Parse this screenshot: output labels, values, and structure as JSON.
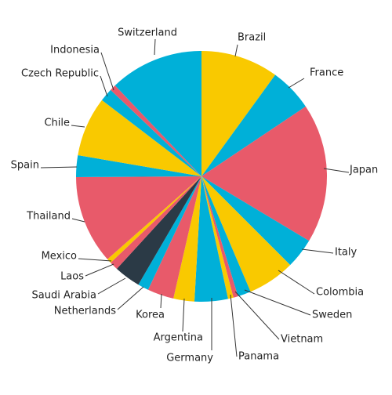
{
  "chart_data": {
    "type": "pie",
    "categories": [
      "Brazil",
      "France",
      "Japan",
      "Italy",
      "Colombia",
      "Sweden",
      "Vietnam",
      "Panama",
      "Germany",
      "Argentina",
      "Korea",
      "Netherlands",
      "Saudi Arabia",
      "Laos",
      "Mexico",
      "Thailand",
      "Spain",
      "Chile",
      "Czech Republic",
      "Indonesia",
      "Switzerland"
    ],
    "values": [
      10,
      5.6,
      18,
      3.9,
      6.1,
      1.7,
      0.6,
      0.7,
      4.3,
      2.7,
      3.4,
      1.4,
      3.4,
      1.1,
      0.6,
      11.4,
      2.8,
      7.7,
      1.7,
      0.8,
      12.1
    ],
    "colors": [
      "#f9c900",
      "#00b0d8",
      "#e85a6a",
      "#00b0d8",
      "#f9c900",
      "#00b0d8",
      "#e85a6a",
      "#f9c900",
      "#00b0d8",
      "#f9c900",
      "#e85a6a",
      "#00b0d8",
      "#2b3a46",
      "#e85a6a",
      "#f9c900",
      "#e85a6a",
      "#00b0d8",
      "#f9c900",
      "#00b0d8",
      "#e85a6a",
      "#00b0d8"
    ]
  }
}
